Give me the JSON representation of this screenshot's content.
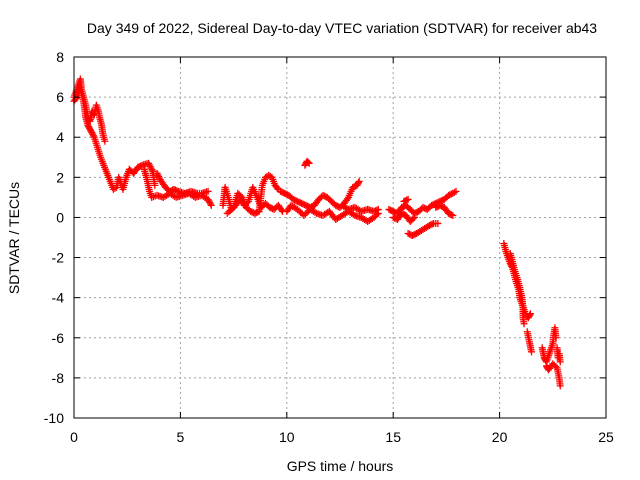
{
  "chart_data": {
    "type": "scatter",
    "title": "Day 349 of 2022, Sidereal Day-to-day VTEC variation (SDTVAR) for receiver ab43",
    "xlabel": "GPS time / hours",
    "ylabel": "SDTVAR / TECUs",
    "xlim": [
      0,
      25
    ],
    "ylim": [
      -10,
      8
    ],
    "xticks": [
      0,
      5,
      10,
      15,
      20,
      25
    ],
    "yticks": [
      -10,
      -8,
      -6,
      -4,
      -2,
      0,
      2,
      4,
      6,
      8
    ],
    "xtick_labels": [
      "0",
      "5",
      "10",
      "15",
      "20",
      "25"
    ],
    "ytick_labels": [
      "-10",
      "-8",
      "-6",
      "-4",
      "-2",
      "0",
      "2",
      "4",
      "6",
      "8"
    ],
    "grid": true,
    "marker": "plus",
    "series_color": "#ff0000",
    "series": [
      {
        "name": "SDTVAR",
        "tracks": [
          [
            [
              0.0,
              6.0
            ],
            [
              0.1,
              6.3
            ],
            [
              0.2,
              6.6
            ],
            [
              0.3,
              6.9
            ],
            [
              0.35,
              6.4
            ],
            [
              0.45,
              6.0
            ],
            [
              0.55,
              5.6
            ],
            [
              0.65,
              5.0
            ],
            [
              0.75,
              4.8
            ],
            [
              0.85,
              5.3
            ],
            [
              0.95,
              5.1
            ],
            [
              1.05,
              5.6
            ],
            [
              1.15,
              5.3
            ],
            [
              1.2,
              5.0
            ],
            [
              1.3,
              4.6
            ],
            [
              1.35,
              4.2
            ],
            [
              1.45,
              3.8
            ]
          ],
          [
            [
              0.0,
              5.8
            ],
            [
              0.15,
              6.0
            ],
            [
              0.3,
              6.5
            ],
            [
              0.45,
              5.8
            ],
            [
              0.55,
              5.0
            ],
            [
              0.65,
              4.6
            ],
            [
              0.8,
              4.3
            ],
            [
              0.95,
              4.0
            ],
            [
              1.1,
              3.5
            ],
            [
              1.25,
              3.0
            ],
            [
              1.4,
              2.6
            ],
            [
              1.55,
              2.2
            ],
            [
              1.7,
              1.8
            ],
            [
              1.85,
              1.4
            ],
            [
              2.0,
              1.5
            ],
            [
              2.1,
              2.0
            ],
            [
              2.2,
              1.7
            ],
            [
              2.3,
              1.4
            ],
            [
              2.45,
              2.0
            ],
            [
              2.6,
              2.4
            ],
            [
              2.8,
              2.2
            ],
            [
              3.0,
              2.5
            ],
            [
              3.2,
              2.6
            ],
            [
              3.5,
              2.7
            ],
            [
              3.7,
              2.3
            ],
            [
              3.8,
              1.6
            ]
          ],
          [
            [
              3.3,
              2.4
            ],
            [
              3.45,
              1.8
            ],
            [
              3.55,
              1.3
            ],
            [
              3.65,
              1.0
            ],
            [
              3.9,
              1.1
            ],
            [
              4.2,
              1.0
            ],
            [
              4.5,
              1.2
            ],
            [
              4.8,
              1.0
            ],
            [
              5.1,
              1.1
            ],
            [
              5.4,
              1.2
            ],
            [
              5.7,
              1.0
            ],
            [
              6.0,
              1.1
            ],
            [
              6.3,
              0.9
            ],
            [
              6.45,
              0.6
            ]
          ],
          [
            [
              3.9,
              2.2
            ],
            [
              4.1,
              1.8
            ],
            [
              4.3,
              1.5
            ],
            [
              4.5,
              1.3
            ],
            [
              4.7,
              1.4
            ],
            [
              4.9,
              1.3
            ],
            [
              5.2,
              1.2
            ],
            [
              5.5,
              1.3
            ],
            [
              5.8,
              1.2
            ],
            [
              6.0,
              1.2
            ],
            [
              6.3,
              1.3
            ]
          ],
          [
            [
              7.0,
              0.6
            ],
            [
              7.1,
              1.5
            ],
            [
              7.25,
              1.0
            ],
            [
              7.4,
              0.4
            ],
            [
              7.6,
              0.6
            ],
            [
              7.8,
              0.9
            ],
            [
              8.0,
              0.6
            ],
            [
              8.2,
              0.8
            ],
            [
              8.4,
              1.5
            ],
            [
              8.6,
              1.0
            ],
            [
              8.8,
              0.5
            ],
            [
              9.0,
              0.7
            ],
            [
              9.2,
              0.5
            ],
            [
              9.4,
              0.4
            ],
            [
              9.6,
              0.6
            ],
            [
              9.8,
              0.3
            ]
          ],
          [
            [
              7.2,
              0.2
            ],
            [
              7.5,
              0.5
            ],
            [
              7.7,
              1.2
            ],
            [
              7.9,
              1.0
            ],
            [
              8.1,
              0.5
            ],
            [
              8.3,
              0.3
            ],
            [
              8.5,
              0.2
            ],
            [
              8.7,
              0.3
            ],
            [
              8.85,
              1.6
            ],
            [
              9.0,
              2.0
            ],
            [
              9.15,
              2.1
            ],
            [
              9.3,
              2.0
            ],
            [
              9.45,
              1.6
            ],
            [
              9.6,
              1.4
            ]
          ],
          [
            [
              9.7,
              1.3
            ],
            [
              9.9,
              1.2
            ],
            [
              10.1,
              1.1
            ],
            [
              10.3,
              0.9
            ],
            [
              10.5,
              0.8
            ],
            [
              10.7,
              0.7
            ],
            [
              10.9,
              0.6
            ],
            [
              11.1,
              0.5
            ],
            [
              11.3,
              0.6
            ],
            [
              11.5,
              0.9
            ],
            [
              11.7,
              1.1
            ],
            [
              11.9,
              1.0
            ],
            [
              12.1,
              0.8
            ],
            [
              12.3,
              0.6
            ],
            [
              12.5,
              0.5
            ],
            [
              12.7,
              0.7
            ],
            [
              12.9,
              1.0
            ],
            [
              13.1,
              1.5
            ],
            [
              13.3,
              1.6
            ],
            [
              13.4,
              1.8
            ]
          ],
          [
            [
              10.0,
              0.3
            ],
            [
              10.2,
              0.6
            ],
            [
              10.5,
              0.4
            ],
            [
              10.8,
              0.1
            ],
            [
              11.1,
              0.4
            ],
            [
              11.4,
              0.2
            ],
            [
              11.7,
              0.1
            ],
            [
              12.0,
              0.3
            ],
            [
              12.3,
              -0.1
            ],
            [
              12.6,
              0.1
            ],
            [
              12.9,
              0.3
            ],
            [
              13.2,
              0.1
            ],
            [
              13.5,
              0.0
            ],
            [
              13.8,
              -0.2
            ],
            [
              14.1,
              0.0
            ],
            [
              14.3,
              0.2
            ]
          ],
          [
            [
              10.85,
              2.6
            ],
            [
              10.95,
              2.8
            ],
            [
              11.05,
              2.7
            ]
          ],
          [
            [
              12.6,
              0.6
            ],
            [
              12.9,
              0.4
            ],
            [
              13.2,
              0.5
            ],
            [
              13.5,
              0.3
            ],
            [
              13.8,
              0.4
            ],
            [
              14.1,
              0.3
            ],
            [
              14.3,
              0.4
            ]
          ],
          [
            [
              14.8,
              0.4
            ],
            [
              15.0,
              0.3
            ],
            [
              15.2,
              0.2
            ],
            [
              15.4,
              0.5
            ],
            [
              15.6,
              0.6
            ],
            [
              15.8,
              0.4
            ],
            [
              16.0,
              0.2
            ],
            [
              16.2,
              0.3
            ],
            [
              16.4,
              0.5
            ],
            [
              16.6,
              0.4
            ],
            [
              16.8,
              0.6
            ],
            [
              17.0,
              0.7
            ],
            [
              17.2,
              0.8
            ],
            [
              17.4,
              0.9
            ],
            [
              17.6,
              1.1
            ],
            [
              17.8,
              1.2
            ],
            [
              17.95,
              1.3
            ]
          ],
          [
            [
              15.0,
              0.0
            ],
            [
              15.2,
              -0.1
            ],
            [
              15.4,
              0.2
            ],
            [
              15.6,
              0.1
            ],
            [
              15.8,
              -0.2
            ],
            [
              16.0,
              0.0
            ]
          ],
          [
            [
              15.5,
              0.8
            ],
            [
              15.7,
              0.9
            ]
          ],
          [
            [
              15.7,
              -0.8
            ],
            [
              15.9,
              -0.9
            ],
            [
              16.1,
              -0.8
            ],
            [
              16.4,
              -0.6
            ],
            [
              16.7,
              -0.4
            ],
            [
              16.9,
              -0.3
            ],
            [
              17.1,
              -0.3
            ]
          ],
          [
            [
              17.0,
              0.5
            ],
            [
              17.2,
              0.6
            ],
            [
              17.4,
              0.5
            ],
            [
              17.6,
              0.2
            ],
            [
              17.8,
              0.1
            ]
          ],
          [
            [
              20.2,
              -1.3
            ],
            [
              20.3,
              -1.7
            ],
            [
              20.4,
              -2.0
            ],
            [
              20.5,
              -2.3
            ],
            [
              20.6,
              -2.5
            ],
            [
              20.7,
              -2.9
            ],
            [
              20.8,
              -3.3
            ],
            [
              20.9,
              -3.6
            ],
            [
              20.95,
              -4.0
            ],
            [
              21.05,
              -4.3
            ],
            [
              21.15,
              -4.6
            ],
            [
              21.25,
              -4.9
            ],
            [
              21.35,
              -5.0
            ],
            [
              21.45,
              -4.8
            ]
          ],
          [
            [
              20.5,
              -1.8
            ],
            [
              20.7,
              -2.6
            ],
            [
              20.85,
              -3.1
            ],
            [
              20.95,
              -3.5
            ],
            [
              21.05,
              -4.0
            ],
            [
              21.1,
              -4.5
            ],
            [
              21.1,
              -5.0
            ],
            [
              21.15,
              -5.3
            ]
          ],
          [
            [
              21.3,
              -5.7
            ],
            [
              21.4,
              -6.2
            ],
            [
              21.5,
              -6.7
            ]
          ],
          [
            [
              22.0,
              -6.5
            ],
            [
              22.1,
              -7.0
            ],
            [
              22.2,
              -7.2
            ],
            [
              22.3,
              -6.9
            ],
            [
              22.4,
              -6.6
            ],
            [
              22.5,
              -6.3
            ],
            [
              22.55,
              -5.8
            ],
            [
              22.6,
              -5.5
            ],
            [
              22.65,
              -6.0
            ]
          ],
          [
            [
              22.7,
              -6.5
            ],
            [
              22.75,
              -7.0
            ],
            [
              22.8,
              -6.8
            ],
            [
              22.85,
              -7.2
            ]
          ],
          [
            [
              22.2,
              -7.4
            ],
            [
              22.3,
              -7.6
            ],
            [
              22.5,
              -7.3
            ],
            [
              22.7,
              -7.5
            ],
            [
              22.8,
              -8.0
            ],
            [
              22.85,
              -8.4
            ]
          ]
        ]
      }
    ]
  }
}
